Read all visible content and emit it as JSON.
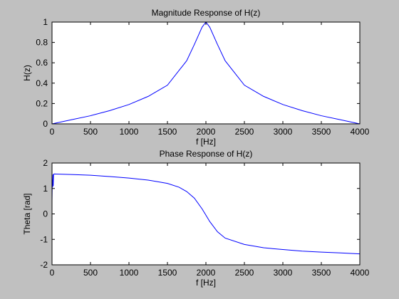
{
  "colors": {
    "figure_background": "#c0c0c0",
    "axes_background": "#ffffff",
    "line": "#0000ff",
    "axis": "#000000"
  },
  "chart_data": [
    {
      "type": "line",
      "title": "Magnitude Response of H(z)",
      "xlabel": "f [Hz]",
      "ylabel": "H(z)",
      "xlim": [
        0,
        4000
      ],
      "ylim": [
        0,
        1
      ],
      "xticks": [
        0,
        500,
        1000,
        1500,
        2000,
        2500,
        3000,
        3500,
        4000
      ],
      "xtick_labels": [
        "0",
        "500",
        "1000",
        "1500",
        "2000",
        "2500",
        "3000",
        "3500",
        "4000"
      ],
      "yticks": [
        0,
        0.2,
        0.4,
        0.6,
        0.8,
        1
      ],
      "ytick_labels": [
        "0",
        "0.2",
        "0.4",
        "0.6",
        "0.8",
        "1"
      ],
      "grid": false,
      "series": [
        {
          "x": [
            0,
            250,
            500,
            750,
            1000,
            1250,
            1500,
            1750,
            1850,
            1950,
            2000,
            2050,
            2150,
            2250,
            2500,
            2750,
            3000,
            3250,
            3500,
            3750,
            4000
          ],
          "y": [
            0,
            0.04,
            0.08,
            0.13,
            0.19,
            0.27,
            0.38,
            0.62,
            0.78,
            0.95,
            1,
            0.95,
            0.78,
            0.62,
            0.38,
            0.27,
            0.19,
            0.13,
            0.08,
            0.04,
            0
          ]
        }
      ]
    },
    {
      "type": "line",
      "title": "Phase Response of H(z)",
      "xlabel": "f [Hz]",
      "ylabel": "Theta [rad]",
      "xlim": [
        0,
        4000
      ],
      "ylim": [
        -2,
        2
      ],
      "xticks": [
        0,
        500,
        1000,
        1500,
        2000,
        2500,
        3000,
        3500,
        4000
      ],
      "xtick_labels": [
        "0",
        "500",
        "1000",
        "1500",
        "2000",
        "2500",
        "3000",
        "3500",
        "4000"
      ],
      "yticks": [
        -2,
        -1,
        0,
        1,
        2
      ],
      "ytick_labels": [
        "-2",
        "-1",
        "0",
        "1",
        "2"
      ],
      "grid": false,
      "series": [
        {
          "x": [
            0,
            4,
            8,
            12,
            16,
            20,
            25,
            250,
            500,
            750,
            1000,
            1250,
            1500,
            1650,
            1750,
            1850,
            1950,
            2000,
            2050,
            2150,
            2250,
            2500,
            2750,
            3000,
            3250,
            3500,
            3750,
            4000
          ],
          "y": [
            0.5,
            1.35,
            1.05,
            1.55,
            1.1,
            1.56,
            1.57,
            1.55,
            1.52,
            1.47,
            1.41,
            1.33,
            1.2,
            1.05,
            0.88,
            0.62,
            0.2,
            -0.05,
            -0.3,
            -0.7,
            -0.95,
            -1.2,
            -1.33,
            -1.4,
            -1.46,
            -1.5,
            -1.53,
            -1.57
          ]
        }
      ]
    }
  ]
}
